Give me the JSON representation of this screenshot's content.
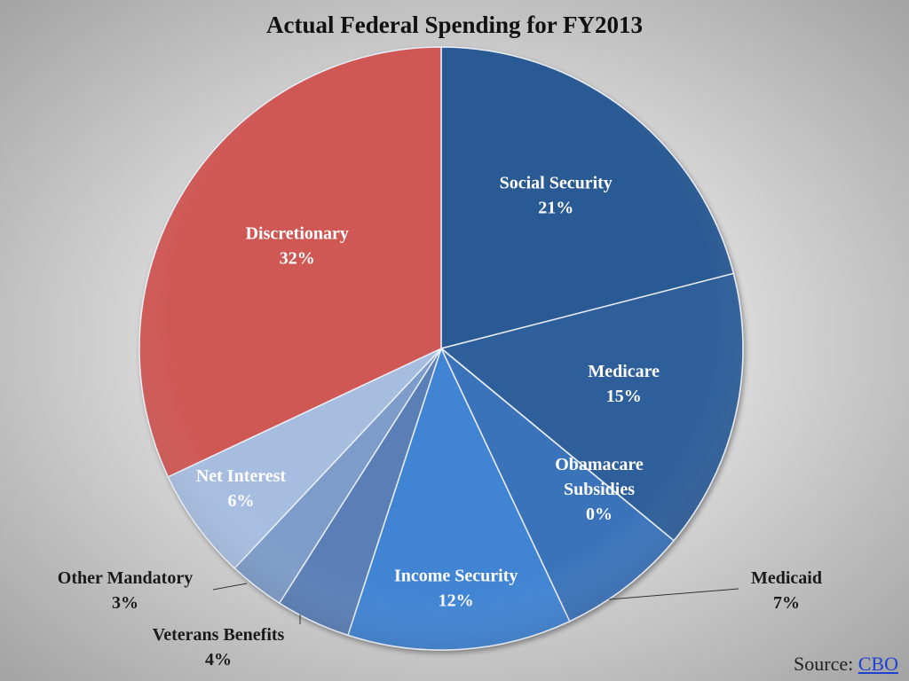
{
  "chart_data": {
    "type": "pie",
    "title": "Actual Federal Spending for FY2013",
    "slices": [
      {
        "label": "Social Security",
        "value": 21,
        "value_label": "21%",
        "color": "#2a5a93"
      },
      {
        "label": "Medicare",
        "value": 15,
        "value_label": "15%",
        "color": "#2e5f9a"
      },
      {
        "label": "Obamacare Subsidies",
        "value": 0,
        "value_label": "0%",
        "color": "#2f63a3"
      },
      {
        "label": "Medicaid",
        "value": 7,
        "value_label": "7%",
        "color": "#3a73bb"
      },
      {
        "label": "Income Security",
        "value": 12,
        "value_label": "12%",
        "color": "#4184d3"
      },
      {
        "label": "Veterans Benefits",
        "value": 4,
        "value_label": "4%",
        "color": "#5a7fb7"
      },
      {
        "label": "Other Mandatory",
        "value": 3,
        "value_label": "3%",
        "color": "#7d9cc9"
      },
      {
        "label": "Net Interest",
        "value": 6,
        "value_label": "6%",
        "color": "#a7bde0"
      },
      {
        "label": "Discretionary",
        "value": 32,
        "value_label": "32%",
        "color": "#cf5955"
      }
    ],
    "start_angle": "12 o'clock",
    "direction": "clockwise"
  },
  "source": {
    "prefix": "Source: ",
    "link_text": "CBO"
  }
}
